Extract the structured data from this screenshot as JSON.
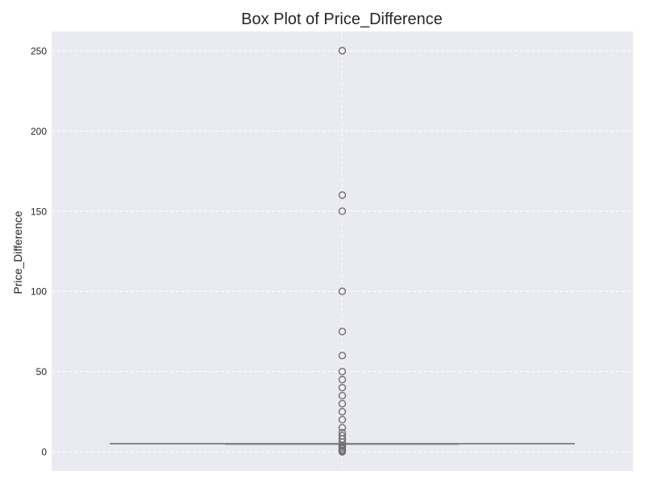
{
  "chart_data": {
    "type": "box",
    "title": "Box Plot of Price_Difference",
    "xlabel": "",
    "ylabel": "Price_Difference",
    "ylim": [
      -12,
      262
    ],
    "yticks": [
      0,
      50,
      100,
      150,
      200,
      250
    ],
    "grid": true,
    "series": [
      {
        "min": 5,
        "q1": 5,
        "median": 5,
        "q3": 5,
        "max": 5,
        "outliers": [
          250,
          160,
          150,
          100,
          75,
          60,
          50,
          45,
          40,
          35,
          30,
          25,
          20,
          15,
          12,
          10,
          8,
          6,
          4,
          3,
          2,
          1,
          0.5,
          0
        ]
      }
    ]
  },
  "colors": {
    "plot_background": "#eaeaf2",
    "grid": "#ffffff",
    "box_line": "#7a7a7a",
    "outlier_edge": "#6f6f6f",
    "text": "#262626"
  }
}
